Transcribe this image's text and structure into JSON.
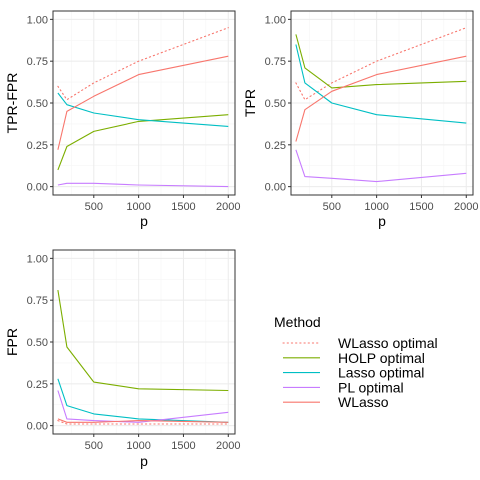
{
  "chart_data": [
    {
      "type": "line",
      "xlabel": "p",
      "ylabel": "TPR-FPR",
      "xlim": [
        45,
        2075
      ],
      "ylim": [
        -0.05,
        1.05
      ],
      "xticks": [
        500,
        1000,
        1500,
        2000
      ],
      "yticks": [
        0.0,
        0.25,
        0.5,
        0.75,
        1.0
      ],
      "ytick_labels": [
        "0.00",
        "0.25",
        "0.50",
        "0.75",
        "1.00"
      ],
      "x": [
        100,
        200,
        500,
        1000,
        2000
      ],
      "series": [
        {
          "name": "WLasso optimal",
          "values": [
            0.6,
            0.52,
            0.62,
            0.75,
            0.95
          ]
        },
        {
          "name": "HOLP optimal",
          "values": [
            0.1,
            0.24,
            0.33,
            0.39,
            0.43
          ]
        },
        {
          "name": "Lasso optimal",
          "values": [
            0.56,
            0.49,
            0.44,
            0.4,
            0.36
          ]
        },
        {
          "name": "PL optimal",
          "values": [
            0.01,
            0.02,
            0.02,
            0.01,
            0.0
          ]
        },
        {
          "name": "WLasso",
          "values": [
            0.22,
            0.45,
            0.54,
            0.67,
            0.78
          ]
        }
      ]
    },
    {
      "type": "line",
      "xlabel": "p",
      "ylabel": "TPR",
      "xlim": [
        45,
        2075
      ],
      "ylim": [
        -0.05,
        1.05
      ],
      "xticks": [
        500,
        1000,
        1500,
        2000
      ],
      "yticks": [
        0.0,
        0.25,
        0.5,
        0.75,
        1.0
      ],
      "ytick_labels": [
        "0.00",
        "0.25",
        "0.50",
        "0.75",
        "1.00"
      ],
      "x": [
        100,
        200,
        500,
        1000,
        2000
      ],
      "series": [
        {
          "name": "WLasso optimal",
          "values": [
            0.62,
            0.52,
            0.62,
            0.75,
            0.95
          ]
        },
        {
          "name": "HOLP optimal",
          "values": [
            0.91,
            0.71,
            0.59,
            0.61,
            0.63
          ]
        },
        {
          "name": "Lasso optimal",
          "values": [
            0.85,
            0.62,
            0.5,
            0.43,
            0.38
          ]
        },
        {
          "name": "PL optimal",
          "values": [
            0.22,
            0.06,
            0.05,
            0.03,
            0.08
          ]
        },
        {
          "name": "WLasso",
          "values": [
            0.27,
            0.46,
            0.57,
            0.67,
            0.78
          ]
        }
      ]
    },
    {
      "type": "line",
      "xlabel": "p",
      "ylabel": "FPR",
      "xlim": [
        45,
        2075
      ],
      "ylim": [
        -0.05,
        1.05
      ],
      "xticks": [
        500,
        1000,
        1500,
        2000
      ],
      "yticks": [
        0.0,
        0.25,
        0.5,
        0.75,
        1.0
      ],
      "ytick_labels": [
        "0.00",
        "0.25",
        "0.50",
        "0.75",
        "1.00"
      ],
      "x": [
        100,
        200,
        500,
        1000,
        2000
      ],
      "series": [
        {
          "name": "WLasso optimal",
          "values": [
            0.03,
            0.01,
            0.01,
            0.01,
            0.01
          ]
        },
        {
          "name": "HOLP optimal",
          "values": [
            0.81,
            0.47,
            0.26,
            0.22,
            0.21
          ]
        },
        {
          "name": "Lasso optimal",
          "values": [
            0.28,
            0.12,
            0.07,
            0.04,
            0.02
          ]
        },
        {
          "name": "PL optimal",
          "values": [
            0.21,
            0.04,
            0.03,
            0.02,
            0.08
          ]
        },
        {
          "name": "WLasso",
          "values": [
            0.04,
            0.02,
            0.02,
            0.03,
            0.02
          ]
        }
      ]
    }
  ],
  "legend": {
    "title": "Method",
    "position": "bottom-right",
    "items": [
      {
        "label": "WLasso optimal",
        "color": "#F8766D",
        "dash": "dotted"
      },
      {
        "label": "HOLP optimal",
        "color": "#7CAE00",
        "dash": "solid"
      },
      {
        "label": "Lasso optimal",
        "color": "#00BFC4",
        "dash": "solid"
      },
      {
        "label": "PL optimal",
        "color": "#C77CFF",
        "dash": "solid"
      },
      {
        "label": "WLasso",
        "color": "#F8766D",
        "dash": "solid"
      }
    ]
  },
  "style": {
    "panel_background": "#FFFFFF",
    "panel_border": "#333333",
    "grid_major": "#EBEBEB",
    "grid_minor": "#F5F5F5",
    "grid": true
  }
}
